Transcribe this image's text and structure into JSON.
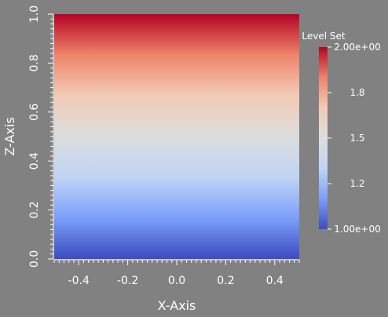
{
  "chart_data": {
    "type": "heatmap",
    "xlabel": "X-Axis",
    "ylabel": "Z-Axis",
    "xlim": [
      -0.5,
      0.5
    ],
    "ylim": [
      0.0,
      1.0
    ],
    "x_ticks": [
      "-0.4",
      "-0.2",
      "0.0",
      "0.2",
      "0.4"
    ],
    "y_ticks": [
      "0.0",
      "0.2",
      "0.4",
      "0.6",
      "0.8",
      "1.0"
    ],
    "field": {
      "direction": "vertical",
      "value_at_z0": 1.0,
      "value_at_z1": 2.0
    },
    "colorbar": {
      "title": "Level Set",
      "range": [
        1.0,
        2.0
      ],
      "tick_labels": [
        "1.00e+00",
        "1.2",
        "1.5",
        "1.8",
        "2.00e+00"
      ],
      "tick_values": [
        1.0,
        1.25,
        1.5,
        1.75,
        2.0
      ],
      "colormap": [
        "#3b4cc0",
        "#7b9ff9",
        "#c0d4f5",
        "#dddddd",
        "#f2cbb7",
        "#ee8468",
        "#b40426"
      ]
    },
    "background": "#818181"
  }
}
